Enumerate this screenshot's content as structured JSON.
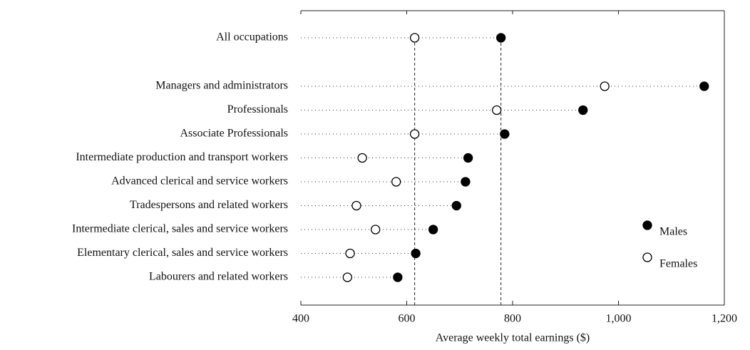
{
  "chart_data": {
    "type": "dot",
    "x_label": "Average weekly total earnings ($)",
    "categories": [
      "All occupations",
      "Managers and administrators",
      "Professionals",
      "Associate Professionals",
      "Intermediate production and transport workers",
      "Advanced clerical and service workers",
      "Tradespersons and related workers",
      "Intermediate clerical, sales and service workers",
      "Elementary clerical, sales and service workers",
      "Labourers and related workers"
    ],
    "series": [
      {
        "name": "Males",
        "color": "#000000",
        "values": [
          778,
          1162,
          933,
          785,
          716,
          711,
          694,
          650,
          617,
          583
        ]
      },
      {
        "name": "Females",
        "color": "#ffffff",
        "values": [
          615,
          974,
          770,
          615,
          516,
          580,
          505,
          541,
          493,
          488
        ]
      }
    ],
    "xlim": [
      400,
      1200
    ],
    "xticks": [
      400,
      600,
      800,
      {
        "value": 1000,
        "label": "1,000"
      },
      {
        "value": 1200,
        "label": "1,200"
      }
    ],
    "legend": "lower right"
  }
}
